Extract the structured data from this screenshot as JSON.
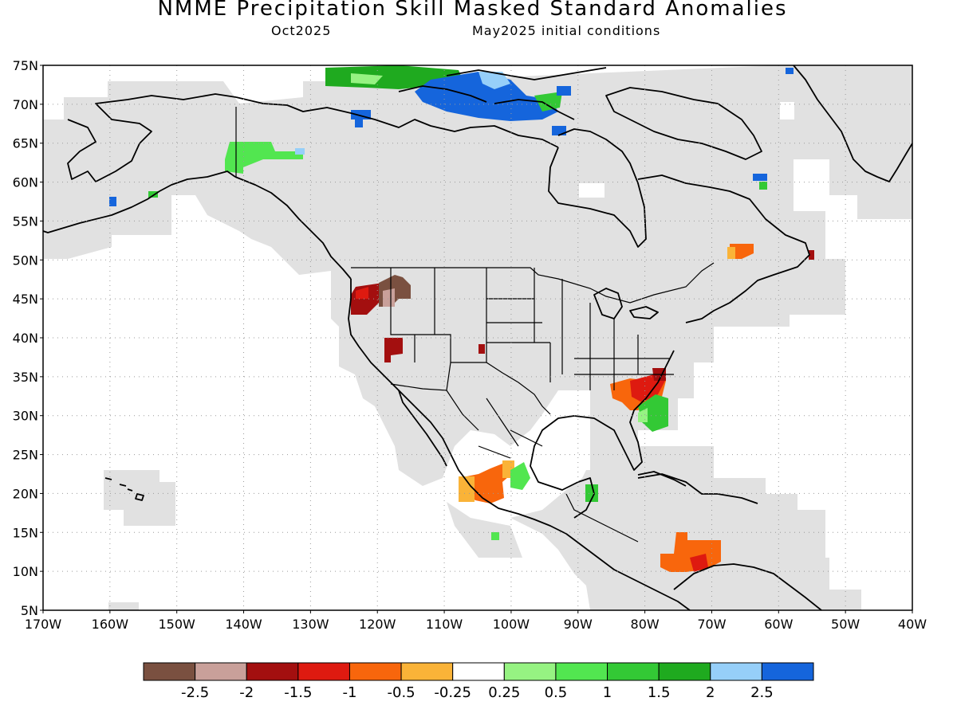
{
  "title": "NMME Precipitation Skill Masked Standard Anomalies",
  "subtitle_left": "Oct2025",
  "subtitle_right": "May2025 initial conditions",
  "chart_data": {
    "type": "heatmap",
    "lat_ticks": [
      "75N",
      "70N",
      "65N",
      "60N",
      "55N",
      "50N",
      "45N",
      "40N",
      "35N",
      "30N",
      "25N",
      "20N",
      "15N",
      "10N",
      "5N"
    ],
    "lon_ticks": [
      "170W",
      "160W",
      "150W",
      "140W",
      "130W",
      "120W",
      "110W",
      "100W",
      "90W",
      "80W",
      "70W",
      "60W",
      "50W",
      "40W"
    ],
    "lat_range": [
      5,
      75
    ],
    "lon_range": [
      -170,
      -40
    ],
    "grid": true,
    "colorbar": {
      "colors": [
        "#7a5040",
        "#c9a09a",
        "#a30f0f",
        "#de1a10",
        "#f8660c",
        "#fab338",
        "#ffffff",
        "#96f382",
        "#52e650",
        "#33c935",
        "#1faa1f",
        "#96cff9",
        "#1565dc"
      ],
      "labels": [
        "-2.5",
        "-2",
        "-1.5",
        "-1",
        "-0.5",
        "-0.25",
        "0.25",
        "0.5",
        "1",
        "1.5",
        "2",
        "2.5"
      ]
    },
    "mask_color": "#e1e1e1",
    "anomaly_regions": [
      {
        "area": "Arctic Archipelago",
        "lon": [
          -98,
          -80
        ],
        "lat": [
          66,
          75
        ],
        "value": 2.5
      },
      {
        "area": "Arctic Archipelago west",
        "lon": [
          -100,
          -96
        ],
        "lat": [
          68,
          74
        ],
        "value": 1.75
      },
      {
        "area": "Beaufort Sea",
        "lon": [
          -121,
          -110
        ],
        "lat": [
          72,
          75
        ],
        "value": 1.75
      },
      {
        "area": "Arctic Archipelago north",
        "lon": [
          -105,
          -96
        ],
        "lat": [
          71,
          75
        ],
        "value": 1.25
      },
      {
        "area": "Banks Island",
        "lon": [
          -123,
          -120
        ],
        "lat": [
          67,
          69
        ],
        "value": 2.5
      },
      {
        "area": "Melville Peninsula",
        "lon": [
          -93,
          -91
        ],
        "lat": [
          66,
          67
        ],
        "value": 2.5
      },
      {
        "area": "Yukon",
        "lon": [
          -143,
          -132
        ],
        "lat": [
          61,
          65
        ],
        "value": 1.25
      },
      {
        "area": "Alaska Peninsula",
        "lon": [
          -160,
          -159
        ],
        "lat": [
          57,
          58
        ],
        "value": 2.5
      },
      {
        "area": "Baffin Island",
        "lon": [
          -63,
          -61
        ],
        "lat": [
          60,
          61
        ],
        "value": 2.5
      },
      {
        "area": "Labrador",
        "lon": [
          -66,
          -62
        ],
        "lat": [
          49,
          51
        ],
        "value": -0.75
      },
      {
        "area": "Newfoundland",
        "lon": [
          -56,
          -55
        ],
        "lat": [
          49,
          51
        ],
        "value": -1.75
      },
      {
        "area": "Oregon",
        "lon": [
          -123,
          -117
        ],
        "lat": [
          43,
          47
        ],
        "value": -1.75
      },
      {
        "area": "Idaho",
        "lon": [
          -120,
          -115
        ],
        "lat": [
          44,
          47
        ],
        "value": -2.25
      },
      {
        "area": "Nevada",
        "lon": [
          -118,
          -115
        ],
        "lat": [
          37,
          40
        ],
        "value": -1.75
      },
      {
        "area": "Colorado",
        "lon": [
          -104,
          -103
        ],
        "lat": [
          38,
          39
        ],
        "value": -1.75
      },
      {
        "area": "Southeast US",
        "lon": [
          -84,
          -76
        ],
        "lat": [
          31,
          36
        ],
        "value": -1.25
      },
      {
        "area": "South Carolina coast",
        "lon": [
          -80,
          -76
        ],
        "lat": [
          33,
          36
        ],
        "value": -1.75
      },
      {
        "area": "Florida Atlantic",
        "lon": [
          -79,
          -74
        ],
        "lat": [
          28,
          32
        ],
        "value": 1.25
      },
      {
        "area": "Central Mexico",
        "lon": [
          -108,
          -100
        ],
        "lat": [
          17,
          22
        ],
        "value": -0.75
      },
      {
        "area": "Gulf of Mexico coast",
        "lon": [
          -100,
          -97
        ],
        "lat": [
          19,
          23
        ],
        "value": 0.75
      },
      {
        "area": "Yucatan",
        "lon": [
          -89,
          -87
        ],
        "lat": [
          18,
          20
        ],
        "value": 1.0
      },
      {
        "area": "Mexico Pacific",
        "lon": [
          -103,
          -102
        ],
        "lat": [
          14,
          15
        ],
        "value": 1.0
      },
      {
        "area": "Caribbean",
        "lon": [
          -78,
          -69
        ],
        "lat": [
          10,
          15
        ],
        "value": -0.75
      },
      {
        "area": "Colombia",
        "lon": [
          -75,
          -70
        ],
        "lat": [
          10,
          12
        ],
        "value": -1.25
      }
    ]
  }
}
